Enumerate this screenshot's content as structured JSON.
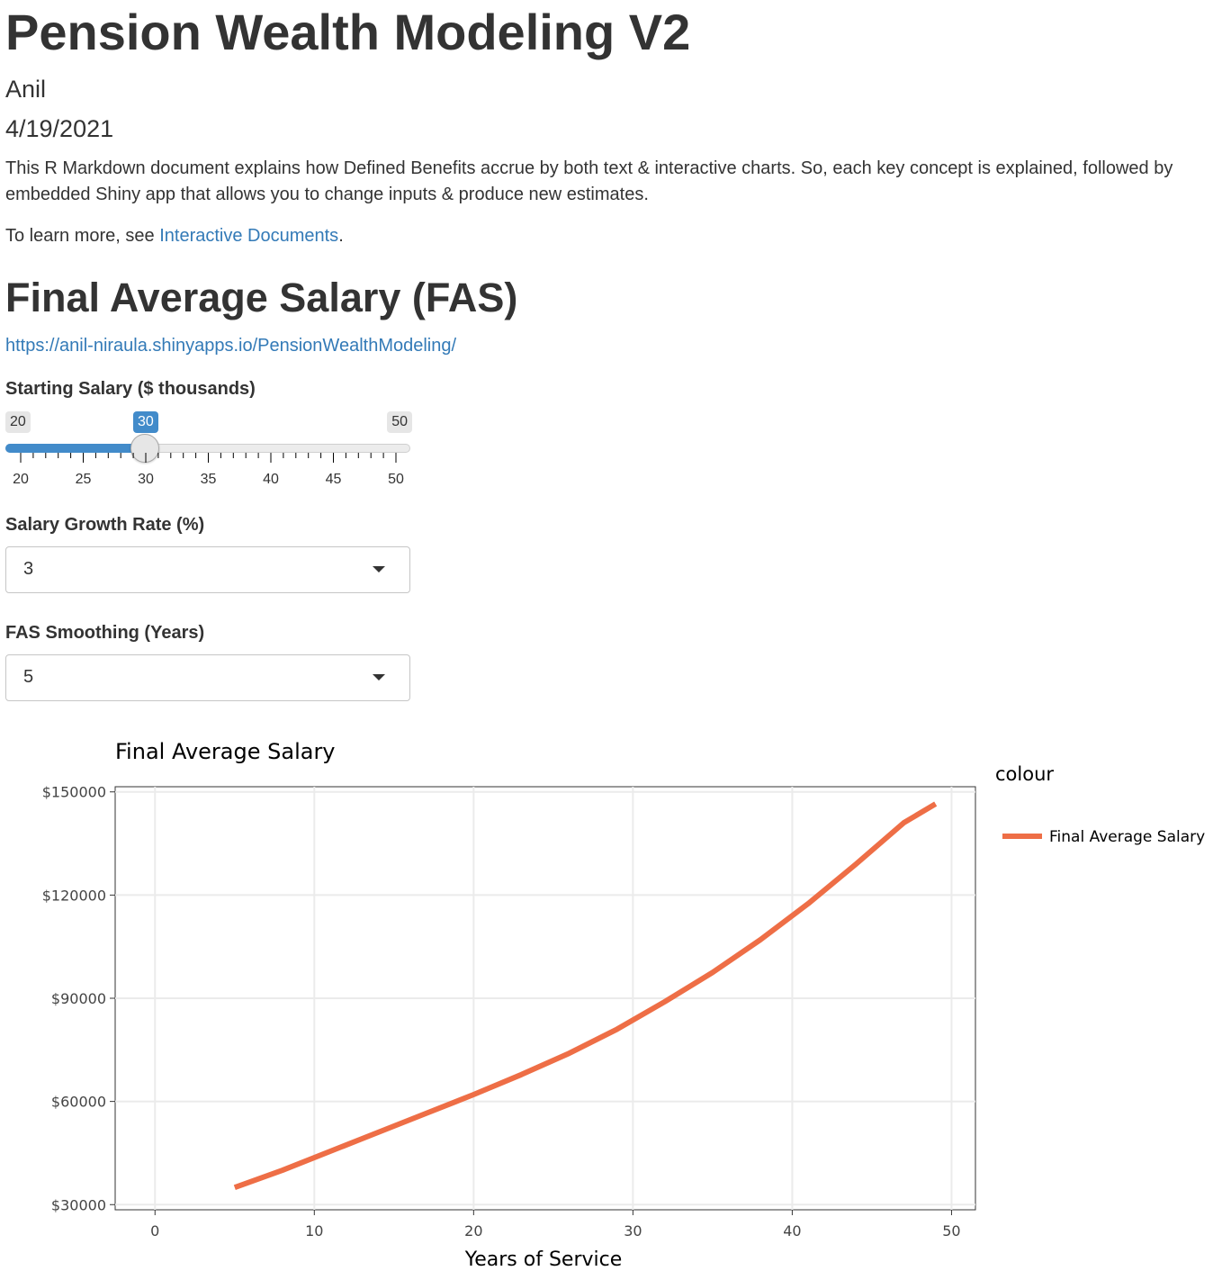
{
  "doc": {
    "title": "Pension Wealth Modeling V2",
    "author": "Anil",
    "date": "4/19/2021",
    "intro": "This R Markdown document explains how Defined Benefits accrue by both text & interactive charts. So, each key concept is explained, followed by embedded Shiny app that allows you to change inputs & produce new estimates.",
    "learn_prefix": "To learn more, see ",
    "learn_link": "Interactive Documents",
    "learn_suffix": "."
  },
  "section": {
    "heading": "Final Average Salary (FAS)",
    "url": "https://anil-niraula.shinyapps.io/PensionWealthModeling/"
  },
  "inputs": {
    "starting_salary": {
      "label": "Starting Salary ($ thousands)",
      "min": "20",
      "max": "50",
      "value": "30",
      "ticks": [
        "20",
        "25",
        "30",
        "35",
        "40",
        "45",
        "50"
      ]
    },
    "growth_rate": {
      "label": "Salary Growth Rate (%)",
      "value": "3"
    },
    "fas_smoothing": {
      "label": "FAS Smoothing (Years)",
      "value": "5"
    }
  },
  "chart_data": {
    "type": "line",
    "title": "Final Average Salary",
    "xlabel": "Years of Service",
    "ylabel": "",
    "legend_title": "colour",
    "legend_position": "right",
    "grid": true,
    "xlim": [
      -2.5,
      51.5
    ],
    "ylim": [
      28500,
      151500
    ],
    "x_ticks": [
      0,
      10,
      20,
      30,
      40,
      50
    ],
    "x_tick_labels": [
      "0",
      "10",
      "20",
      "30",
      "40",
      "50"
    ],
    "y_ticks": [
      30000,
      60000,
      90000,
      120000,
      150000
    ],
    "y_tick_labels": [
      "$30000",
      "$60000",
      "$90000",
      "$120000",
      "$150000"
    ],
    "series": [
      {
        "name": "Final Average Salary",
        "color": "#ee6e46",
        "x": [
          5,
          8,
          11,
          14,
          17,
          20,
          23,
          26,
          29,
          32,
          35,
          38,
          41,
          44,
          47,
          49
        ],
        "y": [
          35000,
          40000,
          45500,
          51000,
          56500,
          62000,
          67800,
          74000,
          81000,
          89000,
          97500,
          107000,
          117500,
          129000,
          141000,
          146500
        ]
      }
    ]
  }
}
